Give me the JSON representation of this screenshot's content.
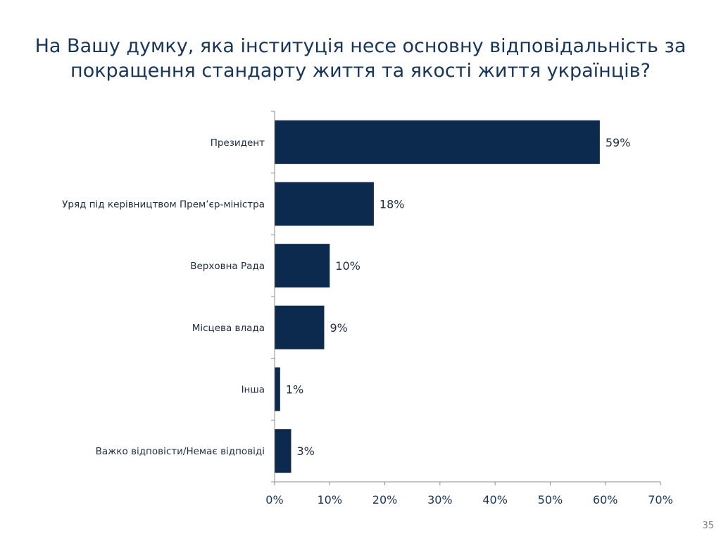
{
  "slide": {
    "title_line1": "На Вашу думку, яка інституція несе основну відповідальність за",
    "title_line2": "покращення стандарту життя та якості життя українців?",
    "page_number": "35"
  },
  "colors": {
    "bar": "#0c2a4e",
    "title": "#17365d",
    "axis": "#8c8c8c",
    "label_text": "#1f2d44"
  },
  "chart_data": {
    "type": "bar",
    "orientation": "horizontal",
    "categories": [
      "Президент",
      "Уряд під керівництвом Прем’єр-міністра",
      "Верховна Рада",
      "Місцева влада",
      "Інша",
      "Важко відповісти/Немає відповіді"
    ],
    "values": [
      59,
      18,
      10,
      9,
      1,
      3
    ],
    "data_labels": [
      "59%",
      "18%",
      "10%",
      "9%",
      "1%",
      "3%"
    ],
    "xlim": [
      0,
      70
    ],
    "xticks": [
      0,
      10,
      20,
      30,
      40,
      50,
      60,
      70
    ],
    "xtick_labels": [
      "0%",
      "10%",
      "20%",
      "30%",
      "40%",
      "50%",
      "60%",
      "70%"
    ],
    "grid": false,
    "legend": "none"
  }
}
